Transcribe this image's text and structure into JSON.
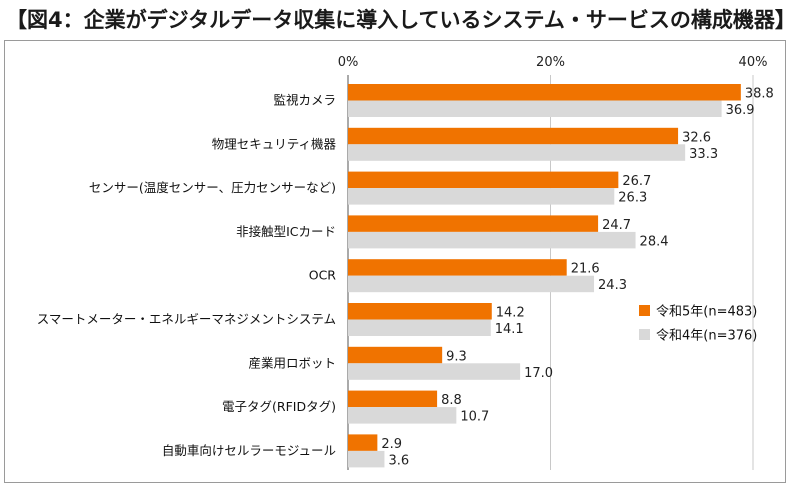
{
  "title": "【図4：企業がデジタルデータ収集に導入しているシステム・サービスの構成機器】",
  "chart_data": {
    "type": "bar",
    "orientation": "horizontal",
    "categories": [
      "監視カメラ",
      "物理セキュリティ機器",
      "センサー(温度センサー、圧力センサーなど)",
      "非接触型ICカード",
      "OCR",
      "スマートメーター・エネルギーマネジメントシステム",
      "産業用ロボット",
      "電子タグ(RFIDタグ)",
      "自動車向けセルラーモジュール"
    ],
    "series": [
      {
        "name": "令和5年(n=483)",
        "color": "#f07300",
        "values": [
          38.8,
          32.6,
          26.7,
          24.7,
          21.6,
          14.2,
          9.3,
          8.8,
          2.9
        ]
      },
      {
        "name": "令和4年(n=376)",
        "color": "#d9d9d9",
        "values": [
          36.9,
          33.3,
          26.3,
          28.4,
          24.3,
          14.1,
          17.0,
          10.7,
          3.6
        ]
      }
    ],
    "xticks": [
      "0%",
      "20%",
      "40%"
    ],
    "xlim": [
      0,
      40
    ],
    "grid": true,
    "legend_position": "right"
  }
}
